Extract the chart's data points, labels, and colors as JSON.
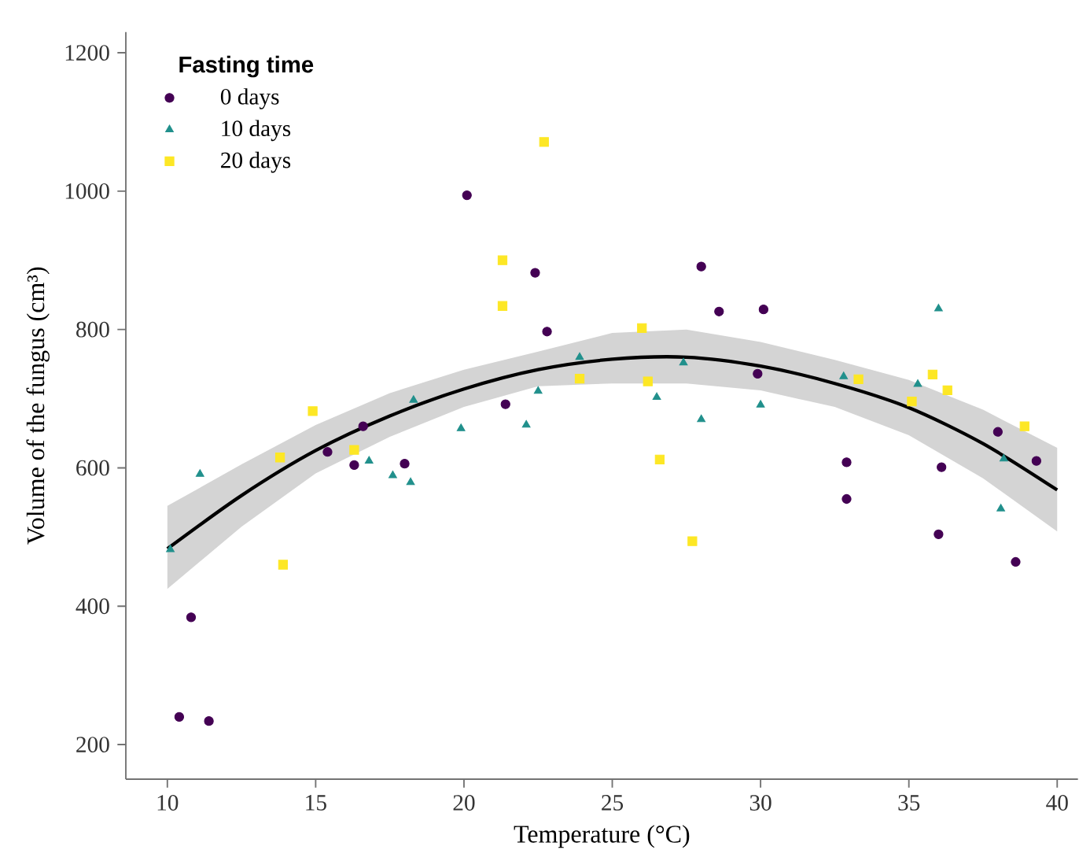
{
  "chart_data": {
    "type": "scatter",
    "xlabel": "Temperature (°C)",
    "ylabel": "Volume of the fungus (cm³)",
    "legend_title": "Fasting time",
    "legend": "top left",
    "grid": false,
    "xlim": [
      8.6,
      40.7
    ],
    "ylim": [
      150,
      1230
    ],
    "xticks": [
      10,
      15,
      20,
      25,
      30,
      35,
      40
    ],
    "yticks": [
      200,
      400,
      600,
      800,
      1000,
      1200
    ],
    "series": [
      {
        "name": "0 days",
        "color": "#440154",
        "marker": "circle",
        "x": [
          10.4,
          10.8,
          11.4,
          15.4,
          16.3,
          16.6,
          18.0,
          20.1,
          21.4,
          22.4,
          22.8,
          28.0,
          28.6,
          30.1,
          29.9,
          32.9,
          32.9,
          36.1,
          36.0,
          38.0,
          39.3,
          38.6
        ],
        "values": [
          240,
          384,
          234,
          623,
          604,
          660,
          606,
          994,
          692,
          882,
          797,
          891,
          826,
          829,
          736,
          608,
          555,
          601,
          504,
          652,
          610,
          464
        ]
      },
      {
        "name": "10 days",
        "color": "#21908c",
        "marker": "triangle",
        "x": [
          10.1,
          11.1,
          16.8,
          17.6,
          18.2,
          18.3,
          19.9,
          22.1,
          22.5,
          23.9,
          26.5,
          27.4,
          28.0,
          30.0,
          32.8,
          35.3,
          36.0,
          38.1,
          38.2
        ],
        "values": [
          482,
          591,
          610,
          589,
          579,
          698,
          657,
          662,
          711,
          760,
          702,
          752,
          670,
          691,
          732,
          721,
          830,
          541,
          613
        ]
      },
      {
        "name": "20 days",
        "color": "#fde725",
        "marker": "square",
        "x": [
          13.8,
          13.9,
          14.9,
          16.3,
          22.7,
          21.3,
          21.3,
          23.9,
          26.0,
          26.2,
          26.6,
          27.7,
          33.3,
          35.1,
          35.8,
          36.3,
          38.9
        ],
        "values": [
          615,
          460,
          682,
          626,
          1071,
          900,
          834,
          729,
          802,
          725,
          612,
          494,
          728,
          696,
          735,
          712,
          660
        ]
      },
      {
        "type": "line",
        "color": "#000000",
        "marker": "none",
        "x": [
          10,
          12.5,
          15,
          17.5,
          20,
          22.5,
          25,
          27.5,
          30,
          32.5,
          35,
          37.5,
          40
        ],
        "values": [
          483,
          560,
          625,
          675,
          714,
          742,
          757,
          760,
          747,
          722,
          687,
          635,
          568
        ],
        "lower": [
          425,
          515,
          592,
          645,
          688,
          718,
          722,
          722,
          712,
          688,
          647,
          585,
          508
        ],
        "upper": [
          545,
          605,
          662,
          708,
          742,
          768,
          795,
          800,
          782,
          756,
          727,
          684,
          629
        ]
      }
    ]
  }
}
